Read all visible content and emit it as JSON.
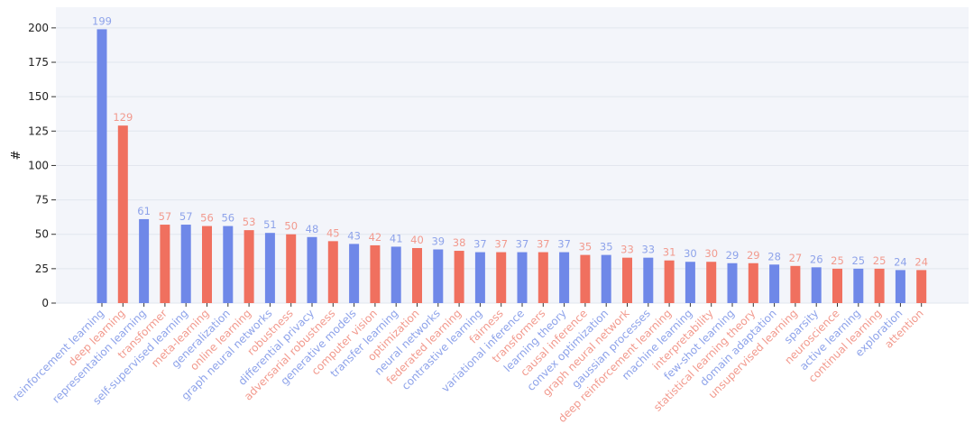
{
  "chart_data": {
    "type": "bar",
    "ylabel": "#",
    "ylim": [
      0,
      215
    ],
    "yticks": [
      0,
      25,
      50,
      75,
      100,
      125,
      150,
      175,
      200
    ],
    "grid": true,
    "colors": {
      "blue": "#7b93ec",
      "red": "#f27d6d",
      "plot_bg": "#f3f5fa"
    },
    "categories": [
      "reinforcement learning",
      "deep learning",
      "representation learning",
      "transformer",
      "self-supervised learning",
      "meta-learning",
      "generalization",
      "online learning",
      "graph neural networks",
      "robustness",
      "differential privacy",
      "adversarial robustness",
      "generative models",
      "computer vision",
      "transfer learning",
      "optimization",
      "neural networks",
      "federated learning",
      "contrastive learning",
      "fairness",
      "variational inference",
      "transformers",
      "learning theory",
      "causal inference",
      "convex optimization",
      "graph neural network",
      "gaussian processes",
      "deep reinforcement learning",
      "machine learning",
      "interpretability",
      "few-shot learning",
      "statistical learning theory",
      "domain adaptation",
      "unsupervised learning",
      "sparsity",
      "neuroscience",
      "active learning",
      "continual learning",
      "exploration",
      "attention"
    ],
    "values": [
      199,
      129,
      61,
      57,
      57,
      56,
      56,
      53,
      51,
      50,
      48,
      45,
      43,
      42,
      41,
      40,
      39,
      38,
      37,
      37,
      37,
      37,
      37,
      35,
      35,
      33,
      33,
      31,
      30,
      30,
      29,
      29,
      28,
      27,
      26,
      25,
      25,
      25,
      24,
      24
    ],
    "value_labels": [
      "199",
      "129",
      "61",
      "57",
      "57",
      "56",
      "56",
      "53",
      "51",
      "50",
      "48",
      "45",
      "43",
      "42",
      "41",
      "40",
      "39",
      "38",
      "37",
      "37",
      "37",
      "37",
      "37",
      "35",
      "35",
      "33",
      "33",
      "31",
      "30",
      "30",
      "29",
      "29",
      "28",
      "27",
      "26",
      "25",
      "25",
      "25",
      "24",
      "24"
    ],
    "bar_colors": [
      "blue",
      "red",
      "blue",
      "red",
      "blue",
      "red",
      "blue",
      "red",
      "blue",
      "red",
      "blue",
      "red",
      "blue",
      "red",
      "blue",
      "red",
      "blue",
      "red",
      "blue",
      "red",
      "blue",
      "red",
      "blue",
      "red",
      "blue",
      "red",
      "blue",
      "red",
      "blue",
      "red",
      "blue",
      "red",
      "blue",
      "red",
      "blue",
      "red",
      "blue",
      "red",
      "blue",
      "red"
    ]
  }
}
